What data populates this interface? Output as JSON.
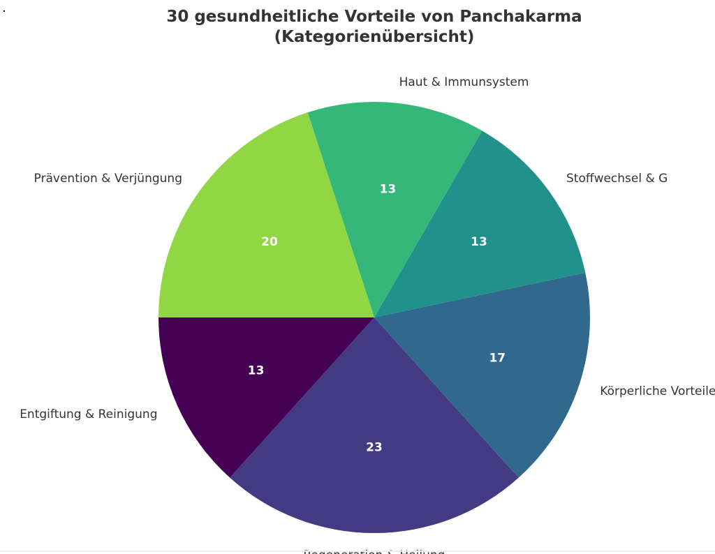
{
  "corner_mark": "·",
  "chart_data": {
    "type": "pie",
    "title": [
      "30 gesundheitliche Vorteile von Panchakarma",
      "(Kategorienübersicht)"
    ],
    "start_angle_deg": 180,
    "direction": "counterclockwise",
    "value_format": "percent-integer",
    "slices": [
      {
        "label": "Entgiftung & Reinigung",
        "value": 13.33,
        "display": "13",
        "color": "#440154"
      },
      {
        "label": "Regeneration & Heilung",
        "value": 23.33,
        "display": "23",
        "color": "#443983"
      },
      {
        "label": "Körperliche Vorteile",
        "value": 16.67,
        "display": "17",
        "color": "#31688e"
      },
      {
        "label": "Stoffwechsel & G",
        "value": 13.33,
        "display": "13",
        "color": "#21918c"
      },
      {
        "label": "Haut & Immunsystem",
        "value": 13.33,
        "display": "13",
        "color": "#35b779"
      },
      {
        "label": "Prävention & Verjüngung",
        "value": 20.0,
        "display": "20",
        "color": "#90d743"
      }
    ]
  }
}
